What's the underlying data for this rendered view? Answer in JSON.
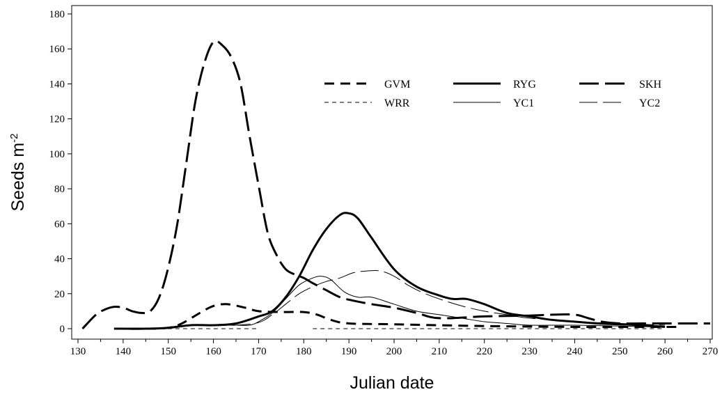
{
  "chart_data": {
    "type": "line",
    "title": "",
    "xlabel": "Julian date",
    "ylabel": "Seeds m",
    "ylabel_superscript": "-2",
    "xlim": [
      130,
      270
    ],
    "ylim": [
      0,
      180
    ],
    "x_ticks": [
      "130",
      "140",
      "150",
      "160",
      "170",
      "180",
      "190",
      "200",
      "210",
      "220",
      "230",
      "240",
      "250",
      "260",
      "270"
    ],
    "y_ticks": [
      "0",
      "20",
      "40",
      "60",
      "80",
      "100",
      "120",
      "140",
      "160",
      "180"
    ],
    "legend_position": "top-right",
    "series": [
      {
        "name": "GVM",
        "style": "medium-dash-thick",
        "x": [
          138,
          145,
          150,
          153,
          157,
          160,
          163,
          167,
          170,
          175,
          180,
          183,
          186,
          190,
          200,
          220,
          240,
          250,
          260,
          263
        ],
        "y": [
          0,
          0,
          0.5,
          3,
          9,
          13,
          14,
          12,
          10,
          9.5,
          9.5,
          8,
          5,
          3,
          2.5,
          1.5,
          1,
          1,
          1,
          1
        ]
      },
      {
        "name": "RYG",
        "style": "solid-thick",
        "x": [
          138,
          145,
          150,
          155,
          160,
          165,
          170,
          173,
          176,
          179,
          182,
          185,
          188,
          190,
          192,
          195,
          200,
          205,
          210,
          213,
          216,
          220,
          225,
          230,
          235,
          240,
          245,
          250,
          255,
          260
        ],
        "y": [
          0,
          0,
          0.5,
          2,
          2,
          3,
          7,
          10,
          18,
          30,
          45,
          57,
          65,
          66,
          63,
          52,
          34,
          24,
          19,
          17,
          17,
          14,
          9,
          7,
          5,
          4,
          3,
          2.5,
          2,
          1
        ]
      },
      {
        "name": "SKH",
        "style": "long-dash-thick",
        "x": [
          131,
          134,
          136,
          138,
          140,
          142,
          144,
          146,
          148,
          150,
          152,
          154,
          156,
          158,
          160,
          162,
          164,
          166,
          168,
          170,
          172,
          174,
          176,
          178,
          180,
          182,
          185,
          188,
          191,
          195,
          200,
          205,
          210,
          220,
          230,
          235,
          240,
          243,
          246,
          250,
          255,
          260,
          270
        ],
        "y": [
          0,
          8,
          11,
          12.5,
          12,
          10,
          9,
          10,
          18,
          35,
          60,
          95,
          130,
          152,
          164,
          162,
          155,
          140,
          110,
          82,
          55,
          42,
          34,
          31,
          29,
          26,
          22,
          18,
          16,
          14,
          12,
          9,
          6,
          7,
          7.5,
          8,
          8,
          6,
          4,
          3,
          3,
          3,
          3
        ]
      },
      {
        "name": "WRR",
        "style": "dash-thin",
        "x": [
          138,
          145,
          150,
          160,
          170
        ],
        "y": [
          0,
          0,
          0,
          0,
          0
        ],
        "x2": [
          182,
          200,
          220,
          240,
          260
        ],
        "y2": [
          0,
          0,
          0,
          0,
          0
        ]
      },
      {
        "name": "YC1",
        "style": "solid-thin",
        "x": [
          138,
          145,
          150,
          155,
          160,
          165,
          168,
          170,
          173,
          176,
          179,
          182,
          184,
          186,
          189,
          192,
          195,
          200,
          205,
          210,
          215,
          220,
          225,
          230,
          240,
          250,
          258
        ],
        "y": [
          0,
          0,
          0.5,
          2,
          2,
          2,
          2,
          4,
          9,
          17,
          25,
          29,
          30,
          28,
          21,
          18,
          18,
          14,
          10,
          8,
          6,
          4,
          3,
          2,
          2,
          1.5,
          1
        ]
      },
      {
        "name": "YC2",
        "style": "long-dash-thin",
        "x": [
          138,
          145,
          150,
          155,
          160,
          165,
          170,
          173,
          176,
          179,
          182,
          185,
          188,
          191,
          194,
          197,
          200,
          203,
          206,
          210,
          215,
          220,
          225,
          230,
          240,
          250,
          260
        ],
        "y": [
          0,
          0,
          0.5,
          2,
          2,
          2,
          3.5,
          8,
          14,
          20,
          24,
          27,
          29,
          32,
          33,
          33,
          30,
          25,
          21,
          17,
          13,
          10,
          8,
          6,
          4,
          3,
          2
        ]
      }
    ]
  }
}
